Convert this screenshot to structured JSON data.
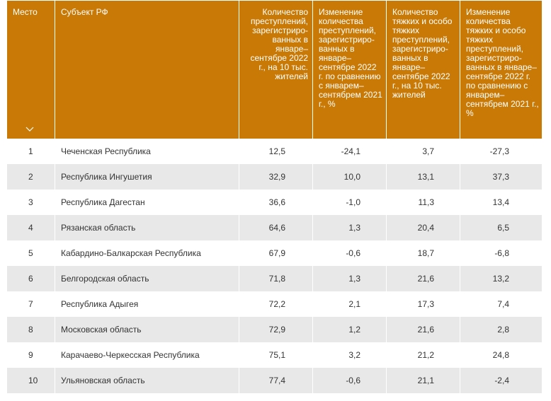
{
  "table": {
    "headers": {
      "place": "Место",
      "region": "Субъект РФ",
      "crimes": "Количество преступлений, зарегистриро-ванных в январе–сентябре 2022 г., на 10 тыс. жителей",
      "crimes_change": "Изменение количества преступлений, зарегистриро-ванных в январе–сентябре 2022 г. по сравнению с январем–сентябрем 2021 г., %",
      "grave": "Количество тяжких и особо тяжких преступлений, зарегистриро-ванных в январе–сентябре 2022 г., на 10 тыс. жителей",
      "grave_change": "Изменение количества тяжких и особо тяжких преступлений, зарегистриро-ванных в январе–сентябре 2022 г. по сравнению с январем–сентябрем 2021 г., %"
    },
    "sort_icon": "chevron-down-icon",
    "rows": [
      {
        "place": "1",
        "region": "Чеченская Республика",
        "crimes": "12,5",
        "crimes_change": "-24,1",
        "grave": "3,7",
        "grave_change": "-27,3"
      },
      {
        "place": "2",
        "region": "Республика Ингушетия",
        "crimes": "32,9",
        "crimes_change": "10,0",
        "grave": "13,1",
        "grave_change": "37,3"
      },
      {
        "place": "3",
        "region": "Республика Дагестан",
        "crimes": "36,6",
        "crimes_change": "-1,0",
        "grave": "11,3",
        "grave_change": "13,4"
      },
      {
        "place": "4",
        "region": "Рязанская область",
        "crimes": "64,6",
        "crimes_change": "1,3",
        "grave": "20,4",
        "grave_change": "6,5"
      },
      {
        "place": "5",
        "region": "Кабардино-Балкарская Республика",
        "crimes": "67,9",
        "crimes_change": "-0,6",
        "grave": "18,7",
        "grave_change": "-6,8"
      },
      {
        "place": "6",
        "region": "Белгородская область",
        "crimes": "71,8",
        "crimes_change": "1,3",
        "grave": "21,6",
        "grave_change": "13,2"
      },
      {
        "place": "7",
        "region": "Республика Адыгея",
        "crimes": "72,2",
        "crimes_change": "2,1",
        "grave": "17,3",
        "grave_change": "7,4"
      },
      {
        "place": "8",
        "region": "Московская область",
        "crimes": "72,9",
        "crimes_change": "1,2",
        "grave": "21,6",
        "grave_change": "2,8"
      },
      {
        "place": "9",
        "region": "Карачаево-Черкесская Республика",
        "crimes": "75,1",
        "crimes_change": "3,2",
        "grave": "21,2",
        "grave_change": "24,8"
      },
      {
        "place": "10",
        "region": "Ульяновская область",
        "crimes": "77,4",
        "crimes_change": "-0,6",
        "grave": "21,1",
        "grave_change": "-2,4"
      }
    ]
  },
  "colors": {
    "header_bg": "#c97a06",
    "header_text": "#ffffff",
    "stripe": "#e8e8e8",
    "text": "#333333"
  }
}
